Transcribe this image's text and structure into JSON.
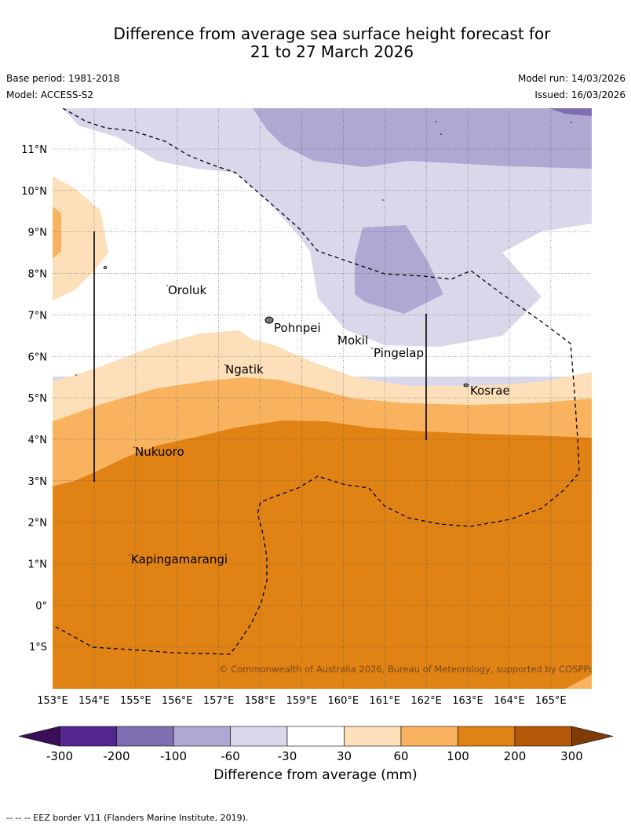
{
  "title": {
    "line1": "Difference from average sea surface height forecast for",
    "line2": "21 to 27 March 2026"
  },
  "meta": {
    "base_period": "Base period: 1981-2018",
    "model": "Model: ACCESS-S2",
    "model_run": "Model run: 14/03/2026",
    "issued": "Issued: 16/03/2026"
  },
  "map": {
    "lat_labels": [
      "11°N",
      "10°N",
      "9°N",
      "8°N",
      "7°N",
      "6°N",
      "5°N",
      "4°N",
      "3°N",
      "2°N",
      "1°N",
      "0°",
      "1°S"
    ],
    "lon_labels": [
      "153°E",
      "154°E",
      "155°E",
      "156°E",
      "157°E",
      "158°E",
      "159°E",
      "160°E",
      "161°E",
      "162°E",
      "163°E",
      "164°E",
      "165°E"
    ],
    "places": [
      "Oroluk",
      "Pohnpei",
      "Mokil",
      "Pingelap",
      "Kosrae",
      "Ngatik",
      "Nukuoro",
      "Kapingamarangi"
    ],
    "copyright": "© Commonwealth of Australia 2026, Bureau of Meteorology, supported by COSPPac"
  },
  "colorbar": {
    "labels": [
      "-300",
      "-200",
      "-100",
      "-60",
      "-30",
      "30",
      "60",
      "100",
      "200",
      "300"
    ],
    "colors": [
      "#3b0f57",
      "#54278f",
      "#7e6fb0",
      "#afa8d3",
      "#d8d8ea",
      "#ffffff",
      "#fde0b9",
      "#f9b35f",
      "#e08214",
      "#b35806",
      "#7f3b08"
    ],
    "title": "Difference from average (mm)"
  },
  "footnote": "-- -- -- EEZ border V11 (Flanders Marine Institute, 2019)."
}
